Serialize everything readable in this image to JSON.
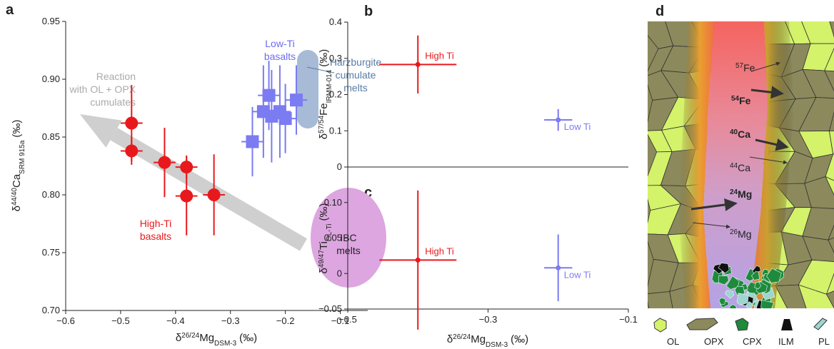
{
  "chart_data": [
    {
      "type": "scatter",
      "panel": "a",
      "x_label": {
        "delta": "δ",
        "sup": "26/24",
        "main": "Mg",
        "sub": "DSM-3",
        "unit": "(‰)"
      },
      "y_label": {
        "delta": "δ",
        "sup": "44/40",
        "main": "Ca",
        "sub": "SRM 915a",
        "unit": "(‰)"
      },
      "xlim": [
        -0.6,
        -0.05
      ],
      "xticks": [
        {
          "value": -0.6,
          "label": "−0.6"
        },
        {
          "value": -0.5,
          "label": "−0.5"
        },
        {
          "value": -0.4,
          "label": "−0.4"
        },
        {
          "value": -0.3,
          "label": "−0.3"
        },
        {
          "value": -0.2,
          "label": "−0.2"
        },
        {
          "value": -0.1,
          "label": "−0.1"
        }
      ],
      "ylim": [
        0.7,
        0.95
      ],
      "yticks": [
        {
          "value": 0.7,
          "label": "0.70"
        },
        0.75,
        {
          "value": 0.8,
          "label": "0.80"
        },
        0.85,
        {
          "value": 0.9,
          "label": "0.90"
        },
        0.95
      ],
      "series": [
        {
          "color": "#e8191c",
          "marker": "circle",
          "x": [
            -0.48,
            -0.48,
            -0.42,
            -0.38,
            -0.38,
            -0.33
          ],
          "values": [
            0.862,
            0.838,
            0.828,
            0.824,
            0.799,
            0.8
          ],
          "xerr": [
            0.02,
            0.02,
            0.02,
            0.02,
            0.02,
            0.02
          ],
          "yerr": [
            0.033,
            0.012,
            0.03,
            0.01,
            0.034,
            0.035
          ]
        },
        {
          "color": "#7b7bf2",
          "marker": "square",
          "x": [
            -0.26,
            -0.24,
            -0.23,
            -0.225,
            -0.21,
            -0.2,
            -0.18
          ],
          "values": [
            0.846,
            0.872,
            0.886,
            0.868,
            0.872,
            0.866,
            0.882
          ],
          "xerr": [
            0.02,
            0.02,
            0.02,
            0.02,
            0.02,
            0.02,
            0.02
          ],
          "yerr": [
            0.03,
            0.04,
            0.03,
            0.04,
            0.04,
            0.03,
            0.03
          ]
        }
      ],
      "annotations": [
        {
          "lines": [
            "Reaction",
            "with OL + OPX",
            "cumulates"
          ],
          "color": "#aaaaaa"
        },
        {
          "lines": [
            "Low-Ti",
            "basalts"
          ],
          "color": "#6b6bf0"
        },
        {
          "lines": [
            "Harzburgite",
            "cumulate",
            "melts"
          ],
          "color": "#5a7aa8"
        },
        {
          "lines": [
            "High-Ti",
            "basalts"
          ],
          "color": "#e8191c"
        },
        {
          "lines": [
            "IBC",
            "melts"
          ],
          "color": "#222222"
        }
      ]
    },
    {
      "type": "scatter",
      "panel": "b",
      "y_label": {
        "delta": "δ",
        "sup": "57/54",
        "main": "Fe",
        "sub": "IRMM-014",
        "unit": "(‰)"
      },
      "xlim": [
        -0.5,
        -0.1
      ],
      "ylim": [
        0,
        0.4
      ],
      "yticks": [
        0,
        0.1,
        0.2,
        0.3,
        0.4
      ],
      "series": [
        {
          "name": "High Ti",
          "color": "#e8191c",
          "marker": "circle",
          "x": [
            -0.4
          ],
          "values": [
            0.283
          ],
          "xerr": [
            0.055
          ],
          "yerr": [
            0.08
          ]
        },
        {
          "name": "Low Ti",
          "color": "#7b7bf2",
          "marker": "circle",
          "x": [
            -0.2
          ],
          "values": [
            0.13
          ],
          "xerr": [
            0.02
          ],
          "yerr": [
            0.03
          ]
        }
      ]
    },
    {
      "type": "scatter",
      "panel": "c",
      "x_label": {
        "delta": "δ",
        "sup": "26/24",
        "main": "Mg",
        "sub": "DSM-3",
        "unit": "(‰)"
      },
      "y_label": {
        "delta": "δ",
        "sup": "49/47",
        "main": "Ti",
        "sub": "OL-Ti",
        "unit": "(‰)"
      },
      "xlim": [
        -0.5,
        -0.1
      ],
      "xticks": [
        {
          "value": -0.5,
          "label": "−0.5"
        },
        {
          "value": -0.3,
          "label": "−0.3"
        },
        {
          "value": -0.1,
          "label": "−0.1"
        }
      ],
      "ylim": [
        -0.05,
        0.15
      ],
      "yticks": [
        {
          "value": -0.05,
          "label": "−0.05"
        },
        0,
        0.05,
        {
          "value": 0.1,
          "label": "0.10"
        }
      ],
      "series": [
        {
          "name": "High Ti",
          "color": "#e8191c",
          "marker": "circle",
          "x": [
            -0.4
          ],
          "values": [
            0.019
          ],
          "xerr": [
            0.055
          ],
          "yerr": [
            0.098
          ]
        },
        {
          "name": "Low Ti",
          "color": "#7b7bf2",
          "marker": "circle",
          "x": [
            -0.2
          ],
          "values": [
            0.008
          ],
          "xerr": [
            0.02
          ],
          "yerr": [
            0.047
          ]
        }
      ]
    }
  ],
  "diagram": {
    "panel": "d",
    "isotopes": [
      {
        "mass": "57",
        "element": "Fe"
      },
      {
        "mass": "54",
        "element": "Fe"
      },
      {
        "mass": "40",
        "element": "Ca"
      },
      {
        "mass": "44",
        "element": "Ca"
      },
      {
        "mass": "24",
        "element": "Mg"
      },
      {
        "mass": "26",
        "element": "Mg"
      }
    ],
    "legend": [
      "OL",
      "OPX",
      "CPX",
      "ILM",
      "PL"
    ]
  }
}
